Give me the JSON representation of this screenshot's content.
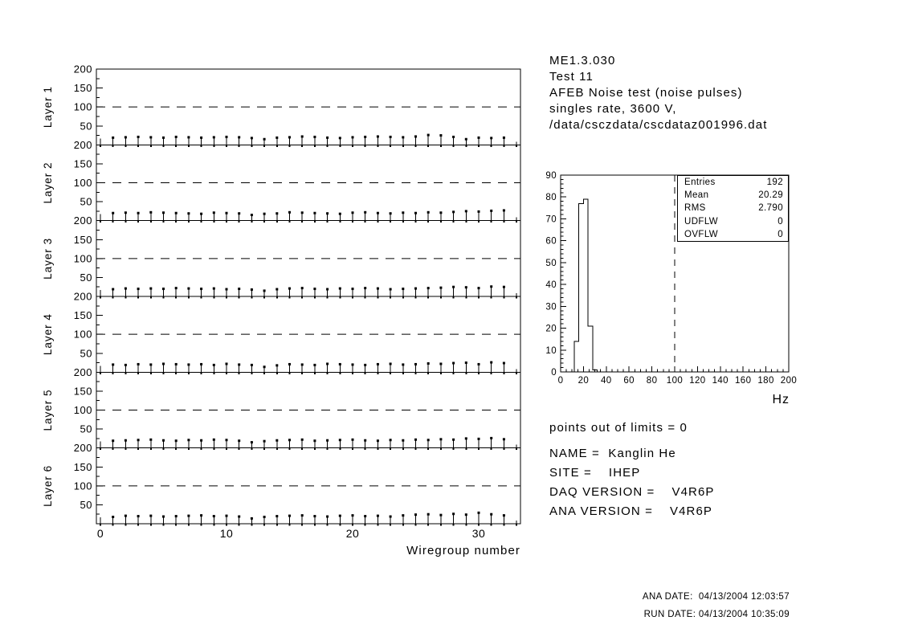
{
  "page": {
    "background": "#ffffff",
    "foreground": "#000000"
  },
  "header": {
    "lines": [
      "ME1.3.030",
      "Test 11",
      "AFEB Noise test (noise pulses)",
      "singles rate, 3600 V,",
      "/data/csczdata/cscdataz001996.dat"
    ]
  },
  "info": {
    "points_out_of_limits": "points out of limits = 0",
    "lines": [
      "NAME =  Kanglin He",
      "SITE =    IHEP",
      "DAQ VERSION =    V4R6P",
      "ANA VERSION =    V4R6P"
    ]
  },
  "footer": {
    "lines": [
      "ANA DATE:  04/13/2004 12:03:57",
      "RUN DATE: 04/13/2004 10:35:09"
    ]
  },
  "stats_box": {
    "rows": [
      {
        "label": "Entries",
        "value": "192"
      },
      {
        "label": "Mean",
        "value": "20.29"
      },
      {
        "label": "RMS",
        "value": "2.790"
      },
      {
        "label": "UDFLW",
        "value": "0"
      },
      {
        "label": "OVFLW",
        "value": "0"
      }
    ]
  },
  "chart_data": [
    {
      "id": "wiregroup-panels",
      "type": "scatter",
      "xlabel": "Wiregroup number",
      "x_range": [
        0,
        33
      ],
      "x_major_ticks": [
        0,
        10,
        20,
        30
      ],
      "y_range": [
        0,
        200
      ],
      "y_major_ticks": [
        50,
        100,
        150,
        200
      ],
      "y_minor_ticks": [
        25,
        75,
        125,
        175
      ],
      "limit_line_y": 100,
      "marker": "filled-square-with-lower-error-bar",
      "x_start": 1,
      "panels": [
        {
          "label": "Layer 1",
          "values": [
            19,
            20,
            21,
            20,
            19,
            21,
            20,
            19,
            20,
            21,
            20,
            18,
            15,
            19,
            20,
            22,
            21,
            19,
            18,
            20,
            21,
            22,
            21,
            20,
            22,
            26,
            25,
            21,
            15,
            19,
            18,
            19
          ]
        },
        {
          "label": "Layer 2",
          "values": [
            20,
            21,
            20,
            22,
            21,
            20,
            19,
            18,
            21,
            20,
            19,
            15,
            18,
            19,
            22,
            21,
            20,
            19,
            18,
            21,
            22,
            20,
            19,
            21,
            20,
            22,
            21,
            23,
            25,
            24,
            26,
            27
          ]
        },
        {
          "label": "Layer 3",
          "values": [
            19,
            21,
            20,
            21,
            20,
            22,
            21,
            20,
            21,
            19,
            20,
            18,
            15,
            19,
            21,
            22,
            20,
            19,
            21,
            20,
            22,
            21,
            19,
            20,
            21,
            22,
            23,
            25,
            24,
            22,
            26,
            25
          ]
        },
        {
          "label": "Layer 4",
          "values": [
            20,
            19,
            21,
            20,
            22,
            21,
            20,
            21,
            19,
            22,
            20,
            19,
            14,
            18,
            21,
            20,
            19,
            22,
            21,
            20,
            19,
            21,
            22,
            20,
            21,
            23,
            22,
            24,
            25,
            21,
            26,
            24
          ]
        },
        {
          "label": "Layer 5",
          "values": [
            19,
            20,
            21,
            22,
            20,
            19,
            21,
            20,
            22,
            21,
            19,
            15,
            18,
            20,
            21,
            22,
            19,
            20,
            21,
            22,
            20,
            19,
            21,
            20,
            22,
            21,
            23,
            22,
            25,
            24,
            26,
            23
          ]
        },
        {
          "label": "Layer 6",
          "values": [
            18,
            21,
            20,
            21,
            19,
            20,
            21,
            22,
            20,
            21,
            19,
            14,
            18,
            20,
            21,
            22,
            20,
            19,
            21,
            22,
            20,
            21,
            19,
            22,
            24,
            25,
            23,
            26,
            24,
            29,
            25,
            22
          ]
        }
      ]
    },
    {
      "id": "singles-rate-histogram",
      "type": "histogram",
      "xlabel": "Hz",
      "x_range": [
        0,
        200
      ],
      "x_major_step": 20,
      "x_minor_step": 5,
      "y_range": [
        0,
        90
      ],
      "y_major_step": 10,
      "y_minor_step": 2,
      "bin_edges": [
        12,
        16,
        20,
        24,
        28,
        32
      ],
      "counts": [
        14,
        77,
        79,
        21,
        1
      ],
      "dashed_line_x": 100,
      "stats": {
        "entries": 192,
        "mean": 20.29,
        "rms": 2.79,
        "udflw": 0,
        "ovflw": 0
      }
    }
  ]
}
